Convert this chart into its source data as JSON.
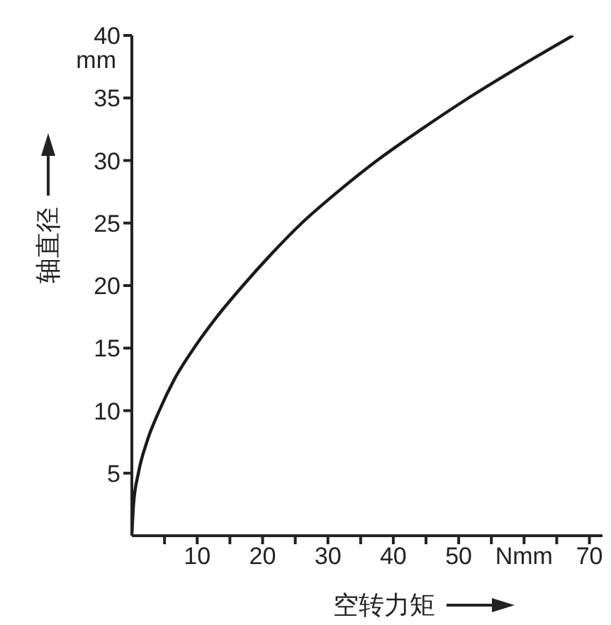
{
  "chart_data": {
    "type": "line",
    "xlabel": "空转力矩",
    "ylabel": "轴直径",
    "annotations": [
      "mm"
    ],
    "x": [
      0,
      0.26,
      1,
      2.3,
      4.2,
      6.5,
      9.5,
      13,
      17,
      21.3,
      26,
      31.5,
      37.5,
      44.3,
      51.5,
      59.3,
      67.5
    ],
    "series": [
      {
        "color": "#1a1a1a",
        "values": [
          0,
          2.5,
          5,
          7.5,
          10,
          12.5,
          15,
          17.5,
          20,
          22.5,
          25,
          27.5,
          30,
          32.5,
          35,
          37.5,
          40
        ]
      }
    ],
    "xlim": [
      0,
      72
    ],
    "ylim": [
      0,
      40
    ],
    "xticks": [
      {
        "value": 5,
        "label": null
      },
      10,
      {
        "value": 15,
        "label": null
      },
      20,
      {
        "value": 25,
        "label": null
      },
      30,
      {
        "value": 35,
        "label": null
      },
      40,
      {
        "value": 45,
        "label": null
      },
      50,
      {
        "value": 55,
        "label": null
      },
      {
        "value": 60,
        "label": "Nmm"
      },
      {
        "value": 65,
        "label": null
      },
      70
    ],
    "yticks": [
      5,
      10,
      15,
      20,
      25,
      30,
      35,
      40
    ],
    "grid": false,
    "legend": false,
    "marker": "none",
    "line_style": "solid"
  }
}
